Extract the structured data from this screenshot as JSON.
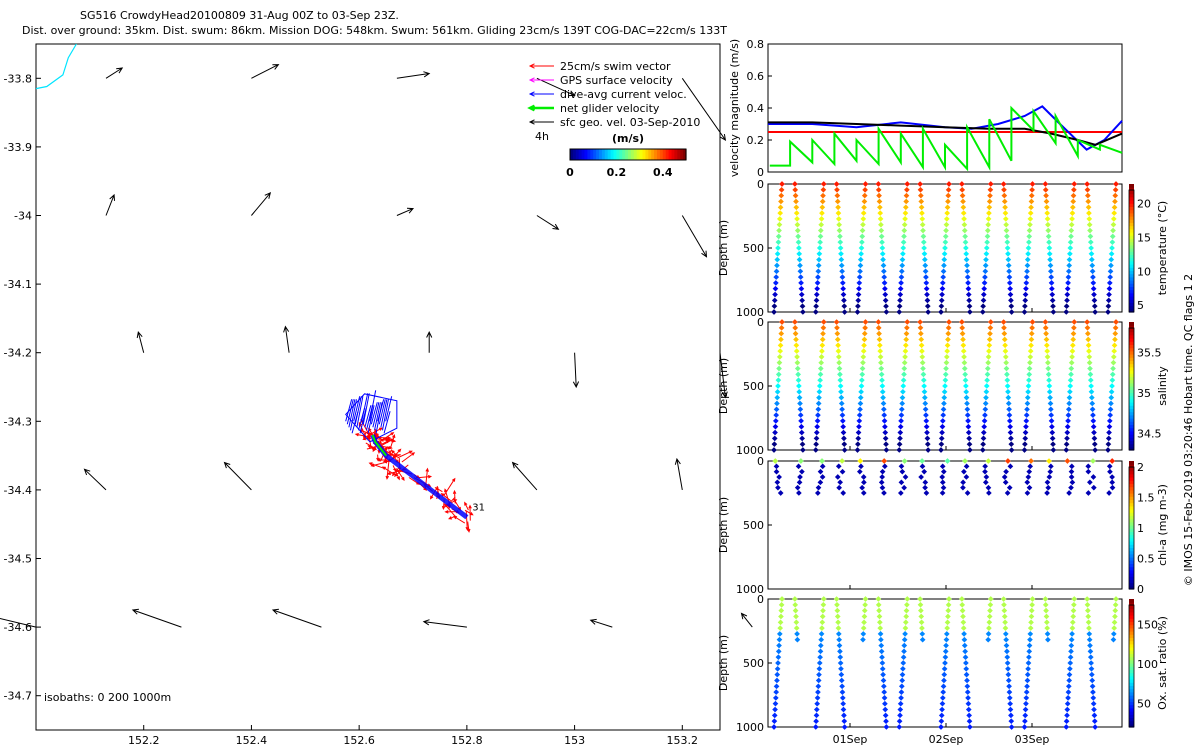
{
  "header": {
    "line1": "SG516 CrowdyHead20100809 31-Aug 00Z to 03-Sep 23Z.",
    "line2": "Dist. over ground: 35km. Dist. swum: 86km. Mission DOG: 548km. Swum: 561km. Gliding 23cm/s 139T COG-DAC=22cm/s 133T"
  },
  "credit": "© IMOS 15-Feb-2019 03:20:46 Hobart time. QC flags 1  2",
  "chart_data": [
    {
      "type": "map",
      "xlim": [
        152.0,
        153.27
      ],
      "ylim": [
        -34.75,
        -33.75
      ],
      "xticks": [
        "152.2",
        "152.4",
        "152.6",
        "152.8",
        "153",
        "153.2"
      ],
      "yticks": [
        "-33.8",
        "-33.9",
        "-34",
        "-34.1",
        "-34.2",
        "-34.3",
        "-34.4",
        "-34.5",
        "-34.6",
        "-34.7"
      ],
      "legend": [
        {
          "label": "25cm/s swim vector",
          "color": "#ff0000"
        },
        {
          "label": "GPS surface velocity",
          "color": "#ff00ff"
        },
        {
          "label": "dive-avg current veloc.",
          "color": "#0000ff"
        },
        {
          "label": "net glider velocity",
          "color": "#00ee00"
        },
        {
          "label": "sfc geo. vel. 03-Sep-2010",
          "color": "#000000"
        }
      ],
      "legend_time": "4h",
      "colorbar": {
        "title": "(m/s)",
        "ticks": [
          "0",
          "0.2",
          "0.4"
        ],
        "range": [
          0,
          0.5
        ]
      },
      "isobaths_label": "isobaths: 0   200  1000m",
      "track_label": "31",
      "coast": [
        [
          152.075,
          -33.75
        ],
        [
          152.06,
          -33.77
        ],
        [
          152.05,
          -33.795
        ],
        [
          152.02,
          -33.812
        ],
        [
          152.0,
          -33.815
        ]
      ],
      "track": [
        [
          152.625,
          -34.32
        ],
        [
          152.63,
          -34.33
        ],
        [
          152.65,
          -34.35
        ],
        [
          152.7,
          -34.38
        ],
        [
          152.75,
          -34.41
        ],
        [
          152.8,
          -34.44
        ]
      ],
      "geo_arrows": [
        {
          "lon": 152.13,
          "lat": -33.8,
          "dlon": 0.03,
          "dlat": 0.015
        },
        {
          "lon": 152.4,
          "lat": -33.8,
          "dlon": 0.05,
          "dlat": 0.02
        },
        {
          "lon": 152.67,
          "lat": -33.8,
          "dlon": 0.06,
          "dlat": 0.007
        },
        {
          "lon": 152.93,
          "lat": -33.8,
          "dlon": 0.07,
          "dlat": -0.025
        },
        {
          "lon": 153.2,
          "lat": -33.8,
          "dlon": 0.08,
          "dlat": -0.09
        },
        {
          "lon": 152.13,
          "lat": -34.0,
          "dlon": 0.015,
          "dlat": 0.03
        },
        {
          "lon": 152.4,
          "lat": -34.0,
          "dlon": 0.035,
          "dlat": 0.033
        },
        {
          "lon": 152.67,
          "lat": -34.0,
          "dlon": 0.03,
          "dlat": 0.01
        },
        {
          "lon": 152.93,
          "lat": -34.0,
          "dlon": 0.04,
          "dlat": -0.02
        },
        {
          "lon": 153.2,
          "lat": -34.0,
          "dlon": 0.045,
          "dlat": -0.06
        },
        {
          "lon": 152.2,
          "lat": -34.2,
          "dlon": -0.01,
          "dlat": 0.03
        },
        {
          "lon": 152.47,
          "lat": -34.2,
          "dlon": -0.007,
          "dlat": 0.038
        },
        {
          "lon": 152.73,
          "lat": -34.2,
          "dlon": 0.0,
          "dlat": 0.03
        },
        {
          "lon": 153.0,
          "lat": -34.2,
          "dlon": 0.003,
          "dlat": -0.05
        },
        {
          "lon": 153.27,
          "lat": -34.2,
          "dlon": 0.01,
          "dlat": -0.065
        },
        {
          "lon": 152.13,
          "lat": -34.4,
          "dlon": -0.04,
          "dlat": 0.03
        },
        {
          "lon": 152.4,
          "lat": -34.4,
          "dlon": -0.05,
          "dlat": 0.04
        },
        {
          "lon": 152.93,
          "lat": -34.4,
          "dlon": -0.045,
          "dlat": 0.04
        },
        {
          "lon": 153.2,
          "lat": -34.4,
          "dlon": -0.01,
          "dlat": 0.045
        },
        {
          "lon": 152.0,
          "lat": -34.6,
          "dlon": -0.08,
          "dlat": 0.015
        },
        {
          "lon": 152.27,
          "lat": -34.6,
          "dlon": -0.09,
          "dlat": 0.025
        },
        {
          "lon": 152.53,
          "lat": -34.6,
          "dlon": -0.09,
          "dlat": 0.025
        },
        {
          "lon": 152.8,
          "lat": -34.6,
          "dlon": -0.08,
          "dlat": 0.008
        },
        {
          "lon": 153.07,
          "lat": -34.6,
          "dlon": -0.04,
          "dlat": 0.01
        },
        {
          "lon": 153.33,
          "lat": -34.6,
          "dlon": -0.02,
          "dlat": 0.02
        }
      ]
    },
    {
      "type": "line",
      "ylabel": "velocity magnitude (m/s)",
      "ylim": [
        0,
        0.8
      ],
      "yticks": [
        "0",
        "0.2",
        "0.4",
        "0.6",
        "0.8"
      ],
      "xlim": [
        0,
        4
      ],
      "series": [
        {
          "color": "#ff0000",
          "x": [
            0,
            4
          ],
          "values": [
            0.25,
            0.25
          ]
        },
        {
          "color": "#0000ff",
          "x": [
            0,
            0.5,
            1,
            1.5,
            2,
            2.3,
            2.6,
            2.9,
            3.1,
            3.3,
            3.6,
            3.8,
            4.0
          ],
          "values": [
            0.3,
            0.3,
            0.28,
            0.31,
            0.28,
            0.27,
            0.3,
            0.35,
            0.41,
            0.3,
            0.14,
            0.2,
            0.32
          ]
        },
        {
          "color": "#000000",
          "x": [
            0,
            0.5,
            1,
            1.5,
            2,
            2.5,
            2.9,
            3.2,
            3.5,
            3.7,
            4.0
          ],
          "values": [
            0.31,
            0.31,
            0.3,
            0.29,
            0.28,
            0.27,
            0.27,
            0.24,
            0.2,
            0.17,
            0.24
          ]
        },
        {
          "color": "#00ee00",
          "x": [
            0.02,
            0.25,
            0.25,
            0.5,
            0.5,
            0.75,
            0.75,
            1.0,
            1.0,
            1.25,
            1.25,
            1.5,
            1.5,
            1.75,
            1.75,
            2.0,
            2.0,
            2.25,
            2.25,
            2.5,
            2.5,
            2.75,
            2.75,
            3.0,
            3.0,
            3.25,
            3.25,
            3.5,
            3.5,
            3.75,
            3.75,
            4.0
          ],
          "values": [
            0.04,
            0.04,
            0.19,
            0.06,
            0.2,
            0.05,
            0.24,
            0.07,
            0.2,
            0.05,
            0.27,
            0.06,
            0.24,
            0.03,
            0.27,
            0.03,
            0.17,
            0.02,
            0.28,
            0.03,
            0.33,
            0.07,
            0.4,
            0.26,
            0.38,
            0.18,
            0.35,
            0.1,
            0.2,
            0.14,
            0.17,
            0.12
          ]
        }
      ]
    },
    {
      "type": "scatter",
      "variable": "temperature",
      "ylabel": "Depth (m)",
      "ylim": [
        0,
        1000
      ],
      "yticks": [
        "0",
        "500",
        "1000"
      ],
      "colorbar": {
        "label": "temperature (°C)",
        "ticks": [
          "5",
          "10",
          "15",
          "20"
        ],
        "range": [
          4,
          22
        ]
      },
      "profiles": {
        "count": 17,
        "surface": 0,
        "bottom": 1000
      },
      "colorbar_palette": [
        "#00008f",
        "#0022ff",
        "#00a2ff",
        "#22ffdd",
        "#9fff5f",
        "#ffdd00",
        "#ff5500",
        "#8f0000"
      ]
    },
    {
      "type": "scatter",
      "variable": "salinity",
      "ylabel": "Depth (m)",
      "ylim": [
        0,
        1000
      ],
      "yticks": [
        "0",
        "500",
        "1000"
      ],
      "colorbar": {
        "label": "salinity",
        "ticks": [
          "34.5",
          "35",
          "35.5"
        ],
        "range": [
          34.3,
          35.8
        ]
      },
      "profiles": {
        "count": 17,
        "surface": 0,
        "bottom": 1000
      }
    },
    {
      "type": "scatter",
      "variable": "chl-a",
      "ylabel": "Depth (m)",
      "ylim": [
        0,
        1000
      ],
      "yticks": [
        "0",
        "500",
        "1000"
      ],
      "colorbar": {
        "label": "chl-a (mg m-3)",
        "ticks": [
          "0",
          "0.5",
          "1",
          "1.5",
          "2"
        ],
        "range": [
          0,
          2
        ]
      },
      "profiles": {
        "count": 17,
        "surface": 0,
        "bottom": 250
      }
    },
    {
      "type": "scatter",
      "variable": "oxygen saturation",
      "ylabel": "Depth (m)",
      "ylim": [
        0,
        1000
      ],
      "yticks": [
        "0",
        "500",
        "1000"
      ],
      "xticks": [
        "01Sep",
        "02Sep",
        "03Sep"
      ],
      "colorbar": {
        "label": "Ox. sat. ratio (%)",
        "ticks": [
          "50",
          "100",
          "150"
        ],
        "range": [
          20,
          175
        ]
      },
      "profiles": {
        "count": 17,
        "surface": 0,
        "bottom": 1000
      }
    }
  ]
}
